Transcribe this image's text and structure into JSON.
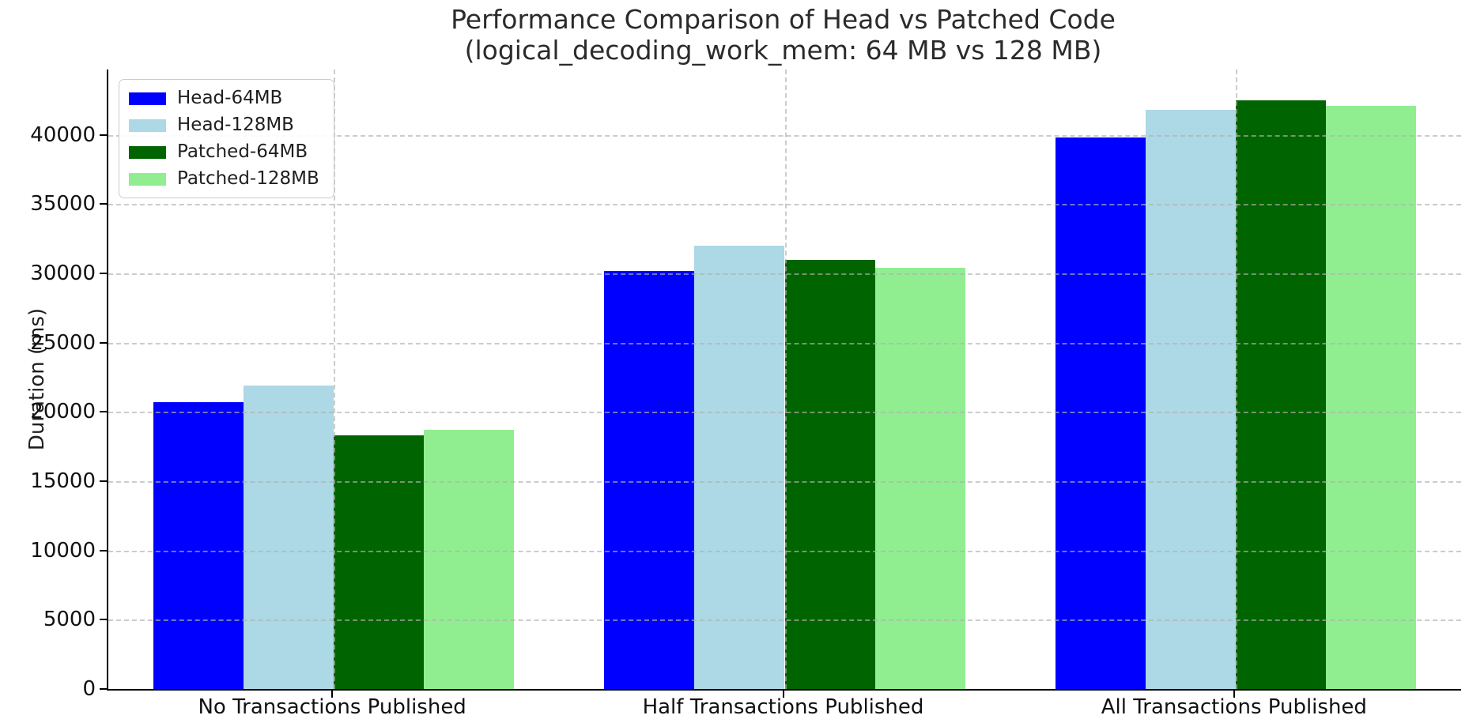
{
  "chart_data": {
    "type": "bar",
    "title": "Performance Comparison of Head vs Patched Code",
    "subtitle": "(logical_decoding_work_mem: 64 MB vs 128 MB)",
    "xlabel": "",
    "ylabel": "Duration (ms)",
    "categories": [
      "No Transactions Published",
      "Half Transactions Published",
      "All Transactions Published"
    ],
    "series": [
      {
        "name": "Head-64MB",
        "color": "#0000ff",
        "values": [
          20700,
          30200,
          39800
        ]
      },
      {
        "name": "Head-128MB",
        "color": "#add8e6",
        "values": [
          21900,
          32000,
          41800
        ]
      },
      {
        "name": "Patched-64MB",
        "color": "#006400",
        "values": [
          18300,
          31000,
          42500
        ]
      },
      {
        "name": "Patched-128MB",
        "color": "#90ee90",
        "values": [
          18700,
          30400,
          42100
        ]
      }
    ],
    "ylim": [
      0,
      44720
    ],
    "yticks": [
      0,
      5000,
      10000,
      15000,
      20000,
      25000,
      30000,
      35000,
      40000
    ],
    "bar_group_width": 0.8,
    "grid": "dashed gray, horizontal at y ticks and vertical at category centers, drawn over bars",
    "legend_position": "upper left"
  },
  "style": {
    "background": "#ffffff",
    "grid_color": "#b0b0b0",
    "spine_color": "#000000",
    "text_color": "#1f1f1f"
  }
}
